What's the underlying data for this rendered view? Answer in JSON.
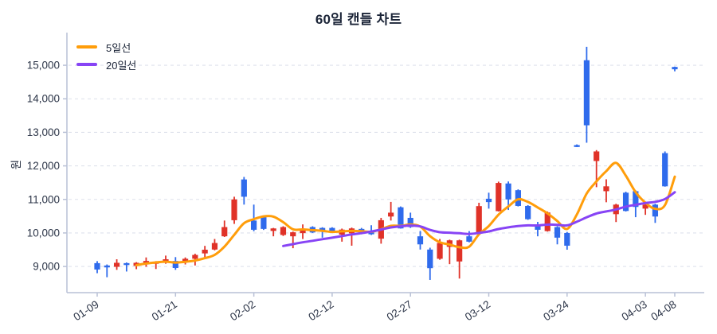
{
  "title": "60일 캔들 차트",
  "chart_data": {
    "type": "candlestick",
    "title": "60일 캔들 차트",
    "ylabel": "원",
    "ylim": [
      8220,
      15950
    ],
    "y_ticks": [
      9000,
      10000,
      11000,
      12000,
      13000,
      14000,
      15000
    ],
    "grid": "horizontal-dashed",
    "legend_position": "top-left",
    "up_color": "#e03228",
    "down_color": "#2f6bec",
    "axis_color": "#b9c1d6",
    "grid_color": "#dee1ec",
    "tick_text_color": "#2b3447",
    "x_tick_labels": [
      {
        "index": 0,
        "label": "01-09"
      },
      {
        "index": 8,
        "label": "01-21"
      },
      {
        "index": 16,
        "label": "02-02"
      },
      {
        "index": 24,
        "label": "02-12"
      },
      {
        "index": 32,
        "label": "02-27"
      },
      {
        "index": 40,
        "label": "03-12"
      },
      {
        "index": 48,
        "label": "03-24"
      },
      {
        "index": 56,
        "label": "04-03"
      },
      {
        "index": 59,
        "label": "04-08"
      }
    ],
    "candles_format": [
      "open",
      "high",
      "low",
      "close"
    ],
    "candles": [
      [
        9100,
        9160,
        8800,
        8910
      ],
      [
        9030,
        9060,
        8680,
        8980
      ],
      [
        8990,
        9215,
        8900,
        9110
      ],
      [
        9100,
        9120,
        8850,
        9080
      ],
      [
        9020,
        9130,
        8920,
        9110
      ],
      [
        9085,
        9270,
        8990,
        9165
      ],
      [
        9080,
        9160,
        8925,
        9140
      ],
      [
        9110,
        9325,
        9080,
        9215
      ],
      [
        9165,
        9280,
        8900,
        8955
      ],
      [
        9150,
        9270,
        9060,
        9230
      ],
      [
        9230,
        9380,
        9030,
        9345
      ],
      [
        9390,
        9615,
        9270,
        9500
      ],
      [
        9505,
        9820,
        9480,
        9700
      ],
      [
        9900,
        10370,
        9880,
        10175
      ],
      [
        10380,
        11080,
        10270,
        11000
      ],
      [
        11595,
        11670,
        10845,
        11080
      ],
      [
        10370,
        10845,
        10050,
        10095
      ],
      [
        10470,
        10520,
        10090,
        10120
      ],
      [
        10060,
        10150,
        9900,
        10135
      ],
      [
        9940,
        10200,
        9910,
        10175
      ],
      [
        9900,
        10040,
        9545,
        10020
      ],
      [
        9995,
        10255,
        9820,
        10070
      ],
      [
        10175,
        10200,
        10000,
        10015
      ],
      [
        10150,
        10170,
        9860,
        10040
      ],
      [
        10150,
        10170,
        10000,
        10015
      ],
      [
        9950,
        10130,
        9740,
        10100
      ],
      [
        9990,
        10160,
        9620,
        10135
      ],
      [
        10120,
        10150,
        9960,
        9975
      ],
      [
        10070,
        10230,
        9940,
        9960
      ],
      [
        9830,
        10450,
        9680,
        10380
      ],
      [
        10490,
        10925,
        10370,
        10605
      ],
      [
        10765,
        10790,
        10130,
        10135
      ],
      [
        10450,
        10605,
        10150,
        10175
      ],
      [
        9900,
        10060,
        9505,
        9660
      ],
      [
        9505,
        9560,
        8600,
        8950
      ],
      [
        9230,
        9820,
        9200,
        9700
      ],
      [
        9585,
        9800,
        9070,
        9780
      ],
      [
        9150,
        9800,
        8640,
        9780
      ],
      [
        9900,
        10055,
        9720,
        9740
      ],
      [
        9980,
        10900,
        9950,
        10800
      ],
      [
        11020,
        11200,
        10725,
        10920
      ],
      [
        10650,
        11530,
        10640,
        11490
      ],
      [
        11475,
        11535,
        10685,
        11000
      ],
      [
        11275,
        11300,
        10790,
        10805
      ],
      [
        10805,
        10830,
        10390,
        10410
      ],
      [
        10215,
        10330,
        9900,
        10095
      ],
      [
        10055,
        10640,
        10040,
        10610
      ],
      [
        10175,
        10200,
        9660,
        9860
      ],
      [
        10000,
        10030,
        9500,
        9620
      ],
      [
        12620,
        12640,
        12560,
        12570
      ],
      [
        15150,
        15550,
        12690,
        13210
      ],
      [
        12145,
        12470,
        11365,
        12430
      ],
      [
        11245,
        11600,
        10915,
        11390
      ],
      [
        10560,
        10870,
        10325,
        10845
      ],
      [
        11200,
        11230,
        10640,
        10655
      ],
      [
        11245,
        11270,
        10470,
        10775
      ],
      [
        10725,
        10870,
        10540,
        10845
      ],
      [
        10845,
        10870,
        10300,
        10490
      ],
      [
        12380,
        12430,
        11380,
        11390
      ],
      [
        14950,
        14960,
        14820,
        14880
      ]
    ],
    "moving_averages": [
      {
        "name": "5일선",
        "window": 5,
        "color": "#ff9d0a"
      },
      {
        "name": "20일선",
        "window": 20,
        "color": "#8744f5"
      }
    ]
  }
}
